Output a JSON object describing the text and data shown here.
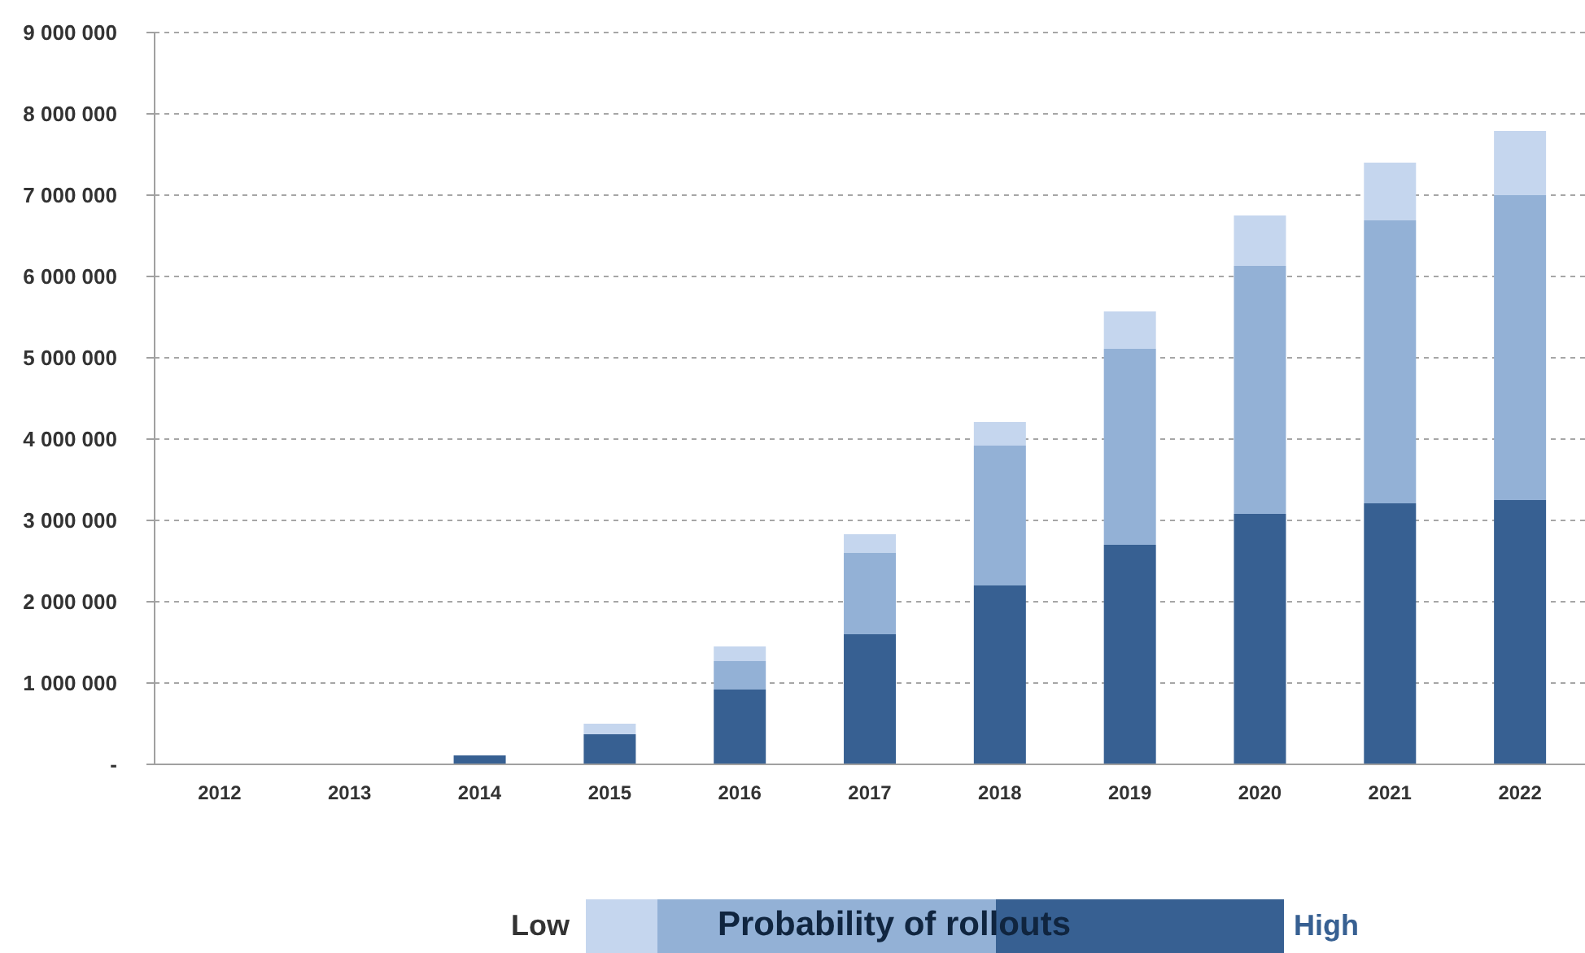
{
  "chart_data": {
    "type": "bar",
    "stacked": true,
    "categories": [
      "2012",
      "2013",
      "2014",
      "2015",
      "2016",
      "2017",
      "2018",
      "2019",
      "2020",
      "2021",
      "2022"
    ],
    "series": [
      {
        "name": "High",
        "color": "#376092",
        "values": [
          0,
          0,
          110000,
          370000,
          920000,
          1600000,
          2200000,
          2700000,
          3080000,
          3210000,
          3250000
        ]
      },
      {
        "color": "#93b1d6",
        "values": [
          0,
          0,
          0,
          0,
          350000,
          1000000,
          1720000,
          2410000,
          3050000,
          3480000,
          3750000
        ]
      },
      {
        "name": "Low",
        "color": "#c5d6ee",
        "values": [
          0,
          0,
          0,
          130000,
          180000,
          230000,
          290000,
          460000,
          620000,
          710000,
          790000
        ]
      }
    ],
    "ylim": [
      0,
      9000000
    ],
    "yticks": [
      {
        "value": 0,
        "label": "-"
      },
      {
        "value": 1000000,
        "label": "1 000 000"
      },
      {
        "value": 2000000,
        "label": "2 000 000"
      },
      {
        "value": 3000000,
        "label": "3 000 000"
      },
      {
        "value": 4000000,
        "label": "4 000 000"
      },
      {
        "value": 5000000,
        "label": "5 000 000"
      },
      {
        "value": 6000000,
        "label": "6 000 000"
      },
      {
        "value": 7000000,
        "label": "7 000 000"
      },
      {
        "value": 8000000,
        "label": "8 000 000"
      },
      {
        "value": 9000000,
        "label": "9 000 000"
      }
    ],
    "grid": "y",
    "legend": "bottom",
    "legend_title": "Probability of rollouts"
  }
}
